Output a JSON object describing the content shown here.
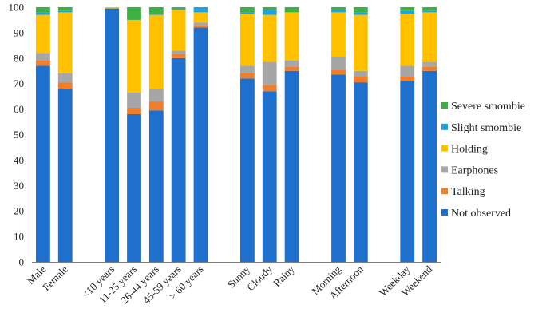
{
  "chart_data": {
    "type": "bar",
    "stacked": true,
    "title": "",
    "xlabel": "",
    "ylabel": "",
    "ylim": [
      0,
      100
    ],
    "yticks": [
      0,
      10,
      20,
      30,
      40,
      50,
      60,
      70,
      80,
      90,
      100
    ],
    "grid": false,
    "legend_position": "right",
    "category_groups": [
      [
        "Male",
        "Female"
      ],
      [
        "<10 years",
        "11-25 years",
        "26-44 years",
        "45-59 years",
        "> 60 years"
      ],
      [
        "Sunny",
        "Cloudy",
        "Rainy"
      ],
      [
        "Morning",
        "Afternoon"
      ],
      [
        "Weekday",
        "Weekend"
      ]
    ],
    "categories": [
      "Male",
      "Female",
      "<10 years",
      "11-25 years",
      "26-44 years",
      "45-59 years",
      "> 60 years",
      "Sunny",
      "Cloudy",
      "Rainy",
      "Morning",
      "Afternoon",
      "Weekday",
      "Weekend"
    ],
    "series": [
      {
        "name": "Not observed",
        "color": "#1f6fcc",
        "values": [
          77,
          68,
          99.5,
          58,
          59.5,
          80,
          92,
          72,
          67,
          75,
          73.5,
          70.5,
          71,
          75
        ]
      },
      {
        "name": "Talking",
        "color": "#f07f2c",
        "values": [
          2,
          2.5,
          0,
          2.5,
          3.5,
          1.5,
          1,
          2,
          2.5,
          1.5,
          2,
          2.5,
          2,
          1.5
        ]
      },
      {
        "name": "Earphones",
        "color": "#a6a6a6",
        "values": [
          3,
          3.5,
          0,
          6,
          5,
          1.5,
          1,
          3,
          9,
          2.5,
          5,
          2,
          4,
          2
        ]
      },
      {
        "name": "Holding",
        "color": "#ffc000",
        "values": [
          15,
          24,
          0.5,
          28.5,
          29,
          16,
          4,
          20.5,
          18.5,
          19,
          17.5,
          22,
          20.5,
          19.5
        ]
      },
      {
        "name": "Slight smombie",
        "color": "#1fa3db",
        "values": [
          1,
          0.5,
          0,
          0,
          0.5,
          0.5,
          2,
          0.5,
          2,
          0,
          1,
          1,
          1,
          0.5
        ]
      },
      {
        "name": "Severe smombie",
        "color": "#3cb043",
        "values": [
          2,
          1.5,
          0,
          5,
          2.5,
          0.5,
          0,
          2,
          1,
          2,
          1,
          2,
          1.5,
          1.5
        ]
      }
    ],
    "legend_order": [
      "Severe smombie",
      "Slight smombie",
      "Holding",
      "Earphones",
      "Talking",
      "Not observed"
    ]
  }
}
